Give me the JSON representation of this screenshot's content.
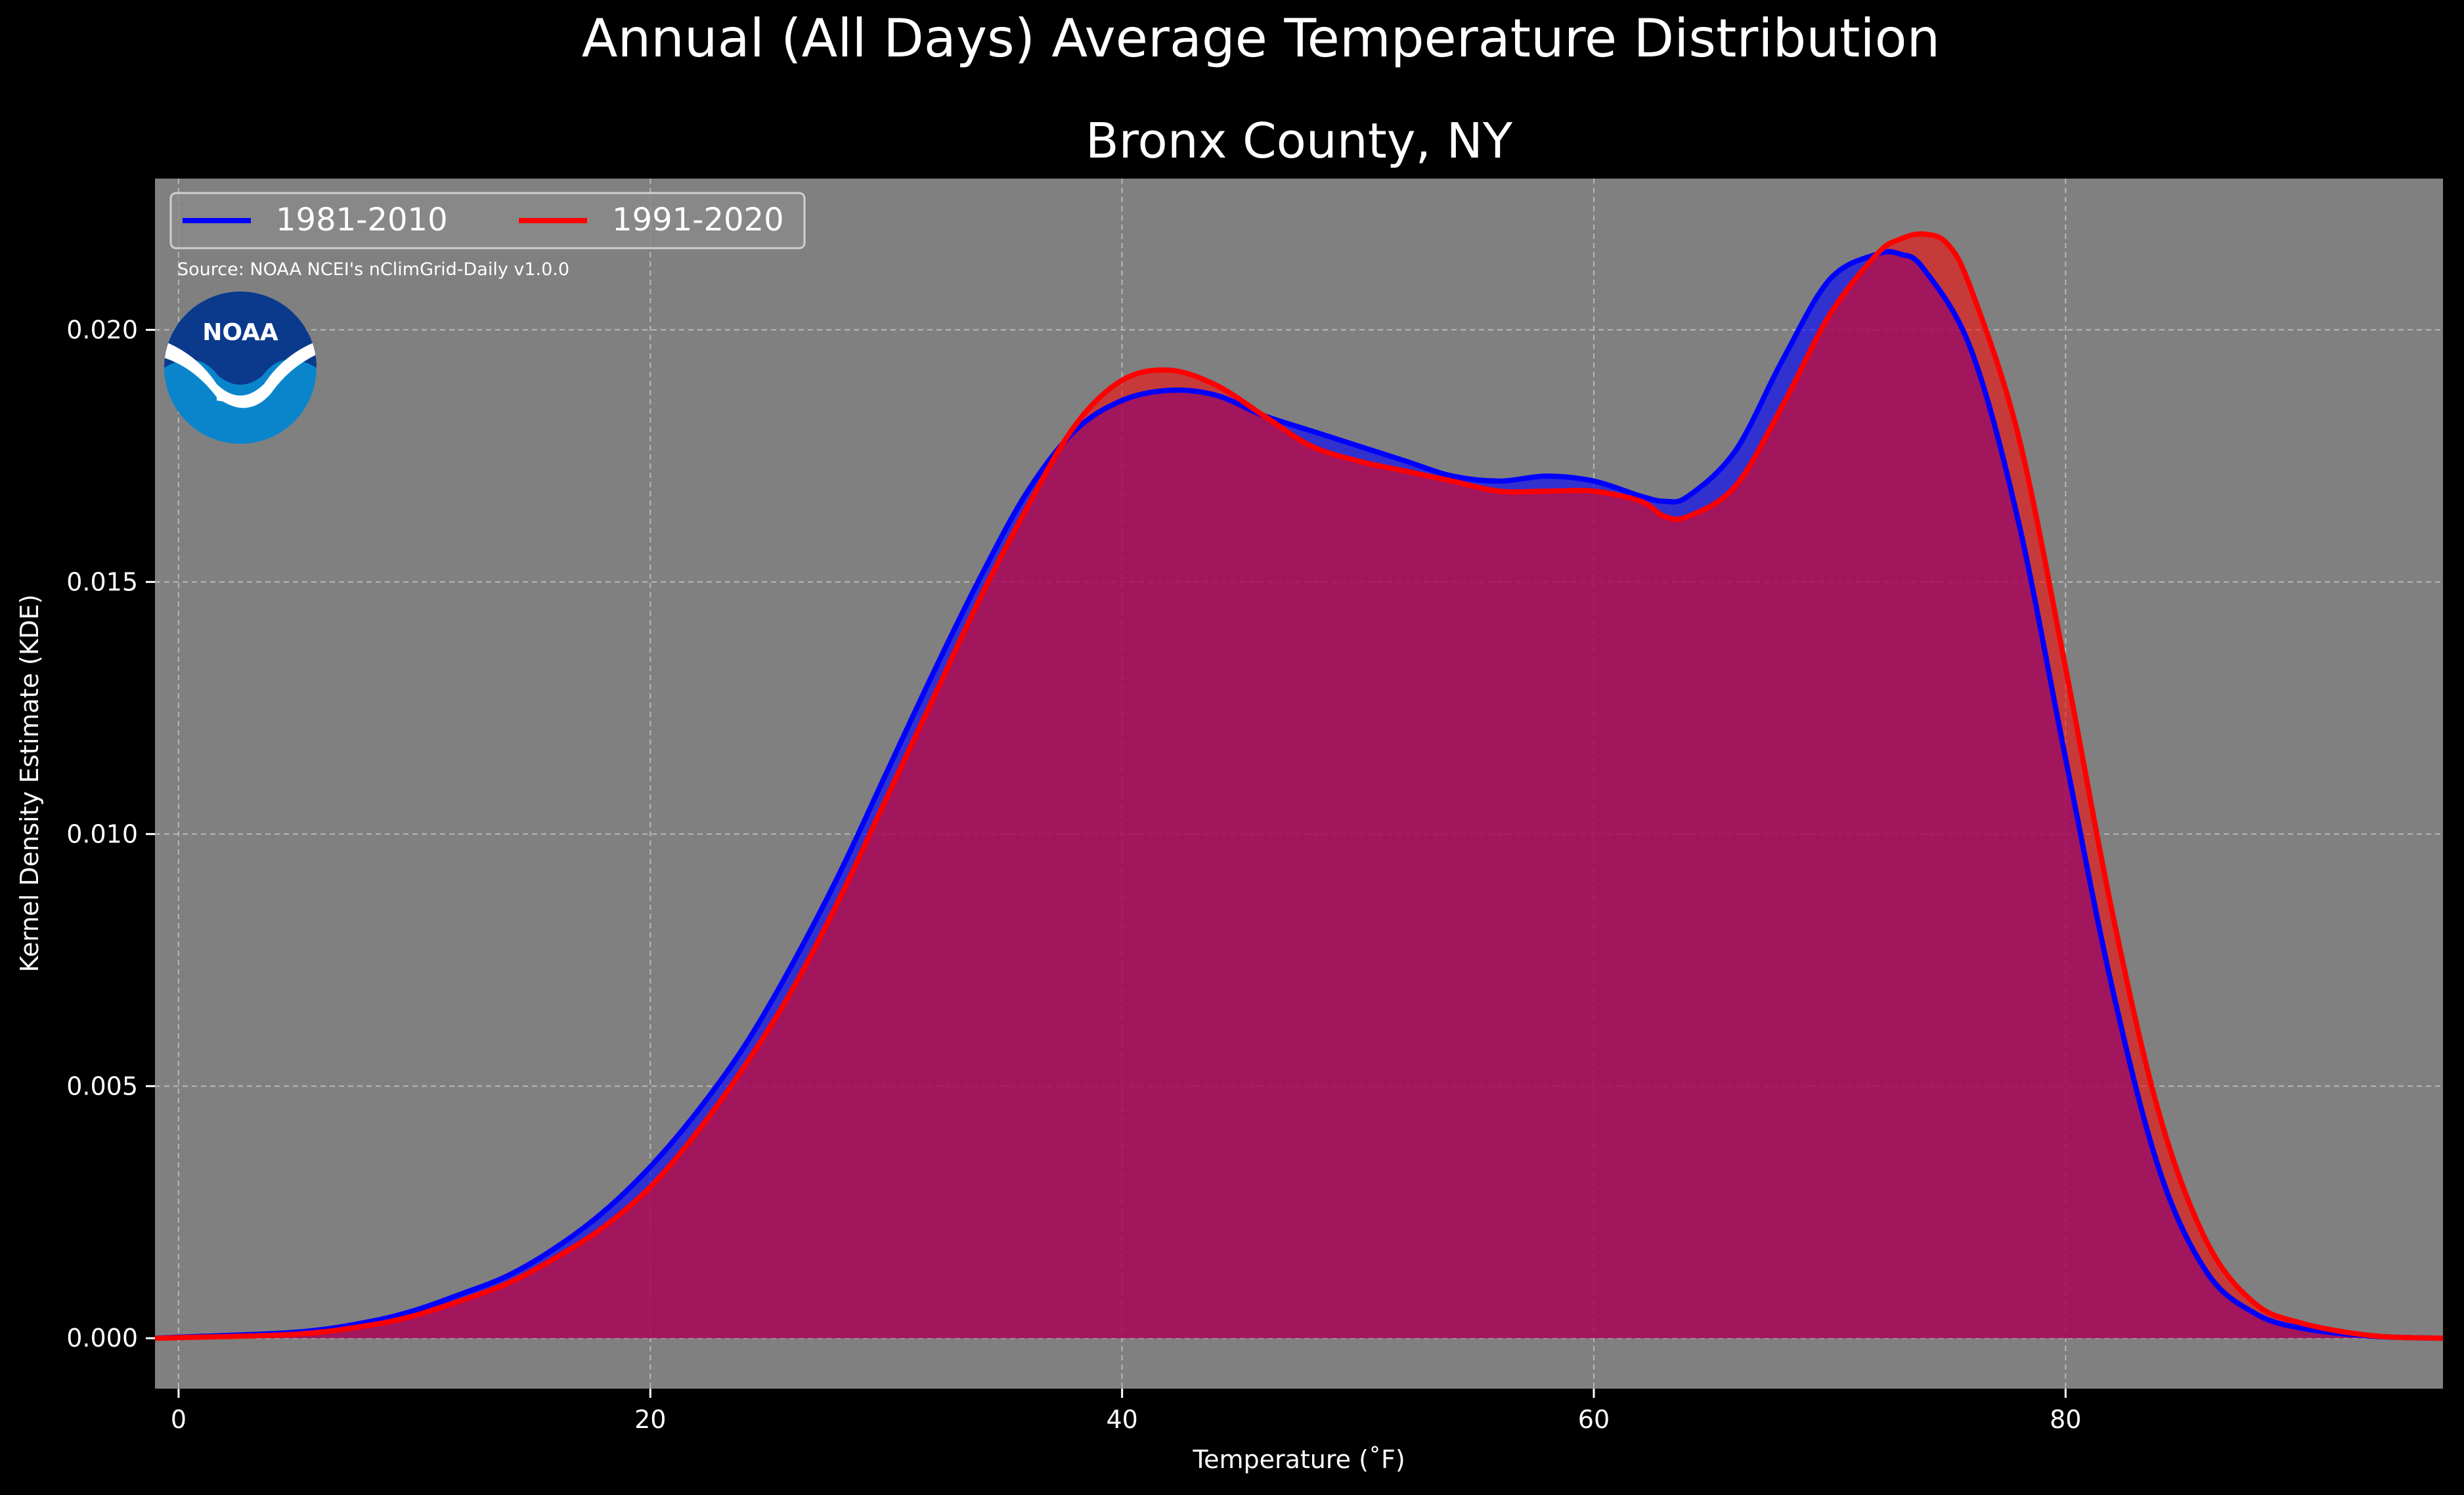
{
  "suptitle": "Annual (All Days) Average Temperature Distribution",
  "source_note": "Source: NOAA NCEI's nClimGrid-Daily v1.0.0",
  "logo_text": "NOAA",
  "colors": {
    "figure_bg": "#000000",
    "axes_bg": "#808080",
    "series_1981": "#0000ff",
    "series_1991": "#ff0000",
    "overlap_fill": "#9c1e5c",
    "logo_outer": "#0a85cc",
    "logo_inner": "#0b3a8c"
  },
  "chart_data": {
    "type": "area",
    "title": "Bronx County, NY",
    "xlabel": "Temperature ($^\\circ$F)",
    "xlabel_display": "Temperature (˚F)",
    "ylabel": "Kernel Density Estimate (KDE)",
    "xlim": [
      -1,
      96
    ],
    "ylim": [
      -0.001,
      0.023
    ],
    "x_ticks": [
      0,
      20,
      40,
      60,
      80
    ],
    "x_tick_labels": [
      "0",
      "20",
      "40",
      "60",
      "80"
    ],
    "y_ticks": [
      0.0,
      0.005,
      0.01,
      0.015,
      0.02
    ],
    "y_tick_labels": [
      "0.000",
      "0.005",
      "0.010",
      "0.015",
      "0.020"
    ],
    "grid": true,
    "legend_position": "top-left",
    "series": [
      {
        "name": "1981-2010",
        "color": "#0000ff",
        "x": [
          -1,
          0,
          5,
          8,
          10,
          12,
          14,
          16,
          18,
          20,
          22,
          24,
          26,
          28,
          30,
          32,
          34,
          36,
          38,
          40,
          42,
          44,
          46,
          48,
          50,
          52,
          54,
          56,
          58,
          60,
          62,
          63,
          64,
          66,
          68,
          70,
          72,
          73,
          74,
          76,
          78,
          80,
          82,
          84,
          86,
          88,
          90,
          93,
          96
        ],
        "y": [
          0.0,
          2e-05,
          0.00012,
          0.00032,
          0.00055,
          0.00088,
          0.00125,
          0.0018,
          0.0025,
          0.0034,
          0.0045,
          0.0058,
          0.0074,
          0.0092,
          0.0112,
          0.0132,
          0.0151,
          0.0168,
          0.018,
          0.0186,
          0.0188,
          0.0187,
          0.0183,
          0.018,
          0.0177,
          0.0174,
          0.0171,
          0.017,
          0.0171,
          0.017,
          0.0167,
          0.0166,
          0.0167,
          0.0176,
          0.0194,
          0.021,
          0.0215,
          0.0215,
          0.0212,
          0.0196,
          0.0162,
          0.0115,
          0.0069,
          0.0033,
          0.0013,
          0.0005,
          0.0002,
          4e-05,
          0.0
        ]
      },
      {
        "name": "1991-2020",
        "color": "#ff0000",
        "x": [
          -1,
          0,
          5,
          8,
          10,
          12,
          14,
          16,
          18,
          20,
          22,
          24,
          26,
          28,
          30,
          32,
          34,
          36,
          38,
          40,
          42,
          44,
          46,
          48,
          50,
          52,
          54,
          56,
          58,
          60,
          62,
          63,
          64,
          66,
          68,
          70,
          72,
          73,
          74,
          75,
          76,
          78,
          80,
          82,
          84,
          86,
          88,
          90,
          93,
          96
        ],
        "y": [
          0.0,
          1e-05,
          8e-05,
          0.00025,
          0.00045,
          0.00075,
          0.0011,
          0.0016,
          0.0022,
          0.003,
          0.0041,
          0.0054,
          0.0069,
          0.0087,
          0.0107,
          0.0127,
          0.0147,
          0.0165,
          0.0181,
          0.019,
          0.0192,
          0.0189,
          0.0183,
          0.0177,
          0.0174,
          0.0172,
          0.017,
          0.0168,
          0.0168,
          0.0168,
          0.0166,
          0.0163,
          0.0163,
          0.0169,
          0.0185,
          0.0203,
          0.0215,
          0.0218,
          0.0219,
          0.0217,
          0.0208,
          0.0179,
          0.0133,
          0.0084,
          0.0044,
          0.0019,
          0.0007,
          0.0003,
          5e-05,
          0.0
        ]
      }
    ]
  }
}
